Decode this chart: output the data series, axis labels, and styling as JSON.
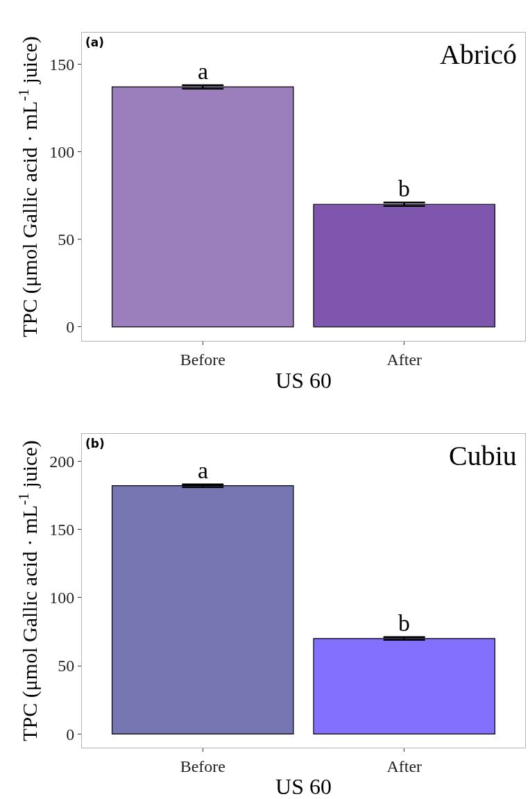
{
  "chart_data": [
    {
      "type": "bar",
      "title": "Abricó",
      "xlabel": "US 60",
      "ylabel": "TPC (μmol Gallic acid · mL$^{-1}$ juice)",
      "categories": [
        "Before",
        "After"
      ],
      "values": [
        137,
        70
      ],
      "errors": [
        1,
        1
      ],
      "colors": [
        "#9b7fbd",
        "#7f56ad"
      ],
      "ylim": [
        -8,
        168
      ],
      "yticks": [
        0,
        50,
        100,
        150
      ],
      "grid": false,
      "annotations": [
        "(a)",
        {
          "text": "a",
          "x": "Before",
          "y": 138
        },
        {
          "text": "b",
          "x": "After",
          "y": 71
        }
      ]
    },
    {
      "type": "bar",
      "title": "Cubiu",
      "xlabel": "US 60",
      "ylabel": "TPC (μmol Gallic acid · mL$^{-1}$ juice)",
      "categories": [
        "Before",
        "After"
      ],
      "values": [
        182,
        70
      ],
      "errors": [
        1,
        1
      ],
      "colors": [
        "#7676b2",
        "#8470ff"
      ],
      "ylim": [
        -10,
        220
      ],
      "yticks": [
        0,
        50,
        100,
        150,
        200
      ],
      "grid": false,
      "annotations": [
        "(b)",
        {
          "text": "a",
          "x": "Before",
          "y": 183
        },
        {
          "text": "b",
          "x": "After",
          "y": 71
        }
      ]
    }
  ]
}
